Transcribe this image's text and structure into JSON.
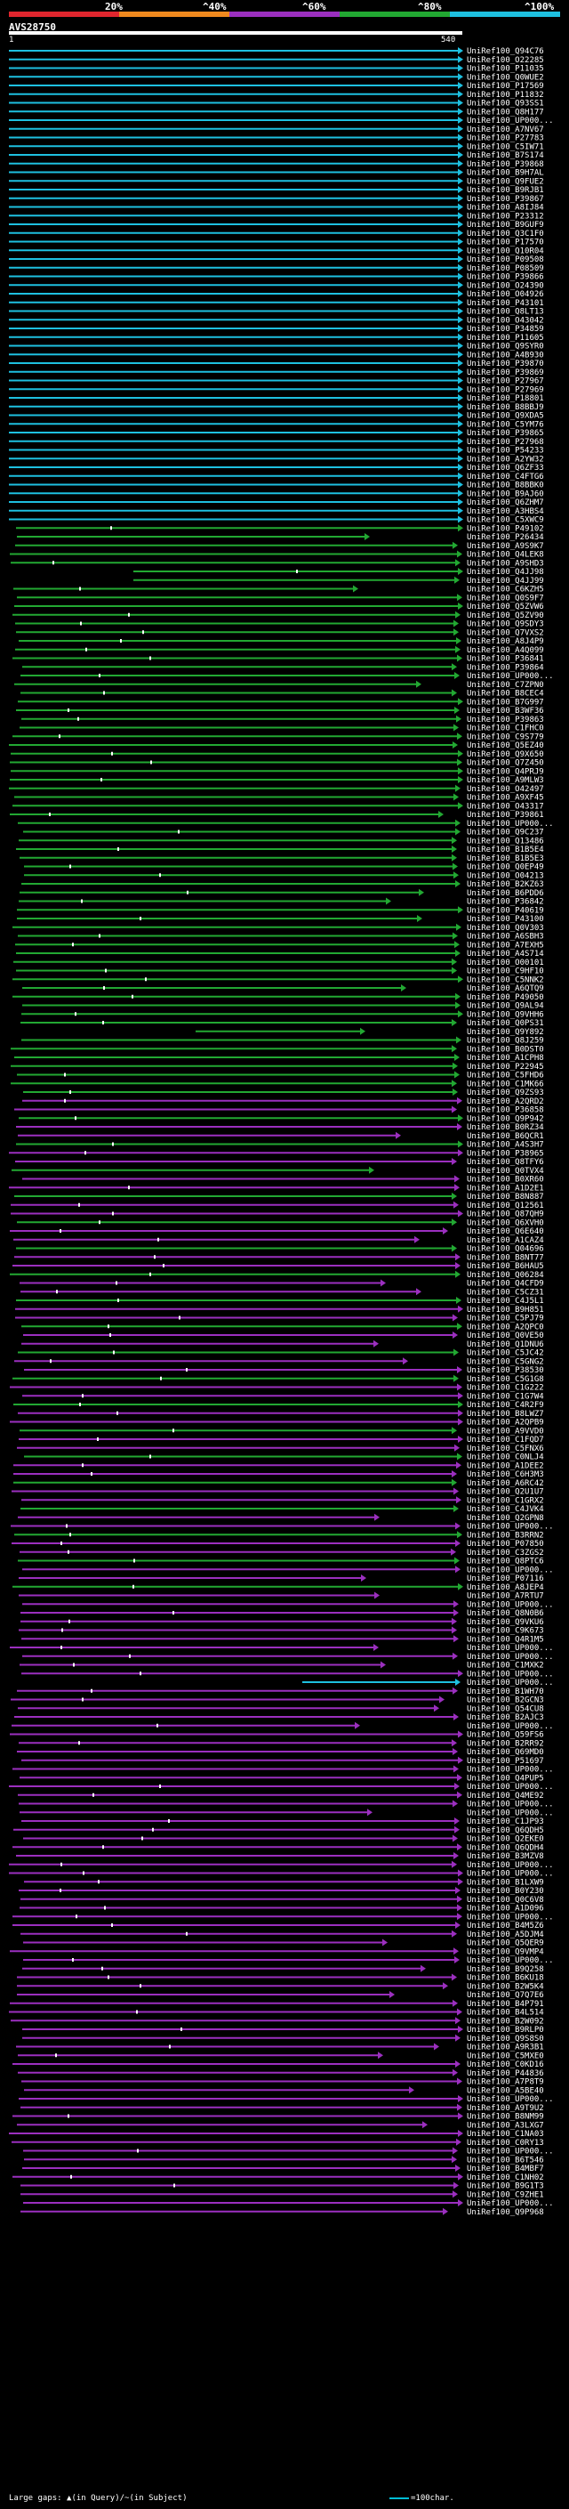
{
  "header": {
    "scale_labels": [
      "20%",
      "^40%",
      "^60%",
      "^80%",
      "^100%"
    ],
    "scale_colors": [
      "#e0262e",
      "#f0891e",
      "#9b2fbf",
      "#22a832",
      "#1ec0e0"
    ],
    "query_id": "AVS28750",
    "coord_start": "1",
    "coord_end": "540"
  },
  "legend": {
    "gaps_text": "Large gaps: ▲(in Query)/~(in Subject)",
    "scale_text": "=100char."
  },
  "chart_data": {
    "type": "alignment-overview",
    "query_length": 540,
    "title": "AVS28750",
    "hits": [
      "UniRef100_Q94C76",
      "UniRef100_O22285",
      "UniRef100_P11035",
      "UniRef100_Q0WUE2",
      "UniRef100_P17569",
      "UniRef100_P11832",
      "UniRef100_Q93SS1",
      "UniRef100_Q8H177",
      "UniRef100_UP000...",
      "UniRef100_A7NV67",
      "UniRef100_P27783",
      "UniRef100_C5IW71",
      "UniRef100_B7S174",
      "UniRef100_P39868",
      "UniRef100_B9H7AL",
      "UniRef100_Q9FUE2",
      "UniRef100_B9RJB1",
      "UniRef100_P39867",
      "UniRef100_A8IJ84",
      "UniRef100_P23312",
      "UniRef100_B9GUF9",
      "UniRef100_Q3C1F0",
      "UniRef100_P17570",
      "UniRef100_Q10R04",
      "UniRef100_P09508",
      "UniRef100_P08509",
      "UniRef100_P39866",
      "UniRef100_O24390",
      "UniRef100_O04926",
      "UniRef100_P43101",
      "UniRef100_Q8LT13",
      "UniRef100_O43042",
      "UniRef100_P34859",
      "UniRef100_P11605",
      "UniRef100_Q9SYR0",
      "UniRef100_A4B930",
      "UniRef100_P39870",
      "UniRef100_P39869",
      "UniRef100_P27967",
      "UniRef100_P27969",
      "UniRef100_P18801",
      "UniRef100_B8BBJ9",
      "UniRef100_Q9XDA5",
      "UniRef100_C5YM76",
      "UniRef100_P39865",
      "UniRef100_P27968",
      "UniRef100_P54233",
      "UniRef100_A2YW32",
      "UniRef100_Q6ZF33",
      "UniRef100_C4FTG6",
      "UniRef100_B8BBK0",
      "UniRef100_B9AJ60",
      "UniRef100_Q6ZHM7",
      "UniRef100_A3HBS4",
      "UniRef100_C5XWC9",
      "UniRef100_P49102",
      "UniRef100_P26434",
      "UniRef100_A9S9K7",
      "UniRef100_Q4LEK8",
      "UniRef100_A9SHD3",
      "UniRef100_Q4JJ98",
      "UniRef100_Q4JJ99",
      "UniRef100_C6KZH5",
      "UniRef100_Q0S9F7",
      "UniRef100_Q5ZVW6",
      "UniRef100_Q5ZV90",
      "UniRef100_Q9SDY3",
      "UniRef100_Q7VXS2",
      "UniRef100_A8J4P9",
      "UniRef100_A4Q099",
      "UniRef100_P36841",
      "UniRef100_P39864",
      "UniRef100_UP000...",
      "UniRef100_C7ZPN0",
      "UniRef100_B8CEC4",
      "UniRef100_B7G997",
      "UniRef100_B3WF36",
      "UniRef100_P39863",
      "UniRef100_C1FHC0",
      "UniRef100_C9S779",
      "UniRef100_Q5EZ40",
      "UniRef100_Q9X650",
      "UniRef100_Q7Z450",
      "UniRef100_Q4PRJ9",
      "UniRef100_A9MLW3",
      "UniRef100_O42497",
      "UniRef100_A9XF45",
      "UniRef100_O43317",
      "UniRef100_P39861",
      "UniRef100_UP000...",
      "UniRef100_Q9C237",
      "UniRef100_Q13486",
      "UniRef100_B1B5E4",
      "UniRef100_B1B5E3",
      "UniRef100_Q0EP49",
      "UniRef100_O04213",
      "UniRef100_B2KZ63",
      "UniRef100_B6PDD6",
      "UniRef100_P36842",
      "UniRef100_P40619",
      "UniRef100_P43100",
      "UniRef100_Q0V303",
      "UniRef100_A6SBH3",
      "UniRef100_A7EXH5",
      "UniRef100_A4S714",
      "UniRef100_O00101",
      "UniRef100_C9HF10",
      "UniRef100_C5NNK2",
      "UniRef100_A6QTQ9",
      "UniRef100_P49050",
      "UniRef100_Q9AL94",
      "UniRef100_Q9VHH6",
      "UniRef100_Q0PS31",
      "UniRef100_Q9Y892",
      "UniRef100_Q8J259",
      "UniRef100_B0DST0",
      "UniRef100_A1CPH8",
      "UniRef100_P22945",
      "UniRef100_C5FHD6",
      "UniRef100_C1MK66",
      "UniRef100_Q9ZS93",
      "UniRef100_A2QRD2",
      "UniRef100_P36858",
      "UniRef100_Q9P942",
      "UniRef100_B0RZ34",
      "UniRef100_B6QCR1",
      "UniRef100_A4S3H7",
      "UniRef100_P38965",
      "UniRef100_Q8TFY6",
      "UniRef100_Q0TVX4",
      "UniRef100_B0XR60",
      "UniRef100_A1D2E1",
      "UniRef100_B8N887",
      "UniRef100_Q12561",
      "UniRef100_Q87QH9",
      "UniRef100_Q6XVH0",
      "UniRef100_Q6E640",
      "UniRef100_A1CAZ4",
      "UniRef100_Q04696",
      "UniRef100_B8NT77",
      "UniRef100_B6HAU5",
      "UniRef100_Q06284",
      "UniRef100_Q4CFD9",
      "UniRef100_C5CZ31",
      "UniRef100_C4J5L1",
      "UniRef100_B9H851",
      "UniRef100_C5PJ79",
      "UniRef100_A2QPC0",
      "UniRef100_Q0VE50",
      "UniRef100_Q1DNU6",
      "UniRef100_C5JC42",
      "UniRef100_C5GNG2",
      "UniRef100_P38530",
      "UniRef100_C5G1G8",
      "UniRef100_C1G222",
      "UniRef100_C1G7W4",
      "UniRef100_C4R2F9",
      "UniRef100_B8LWZ7",
      "UniRef100_A2QPB9",
      "UniRef100_A9VVD0",
      "UniRef100_C1FQD7",
      "UniRef100_C5FNX6",
      "UniRef100_C0NLJ4",
      "UniRef100_A1DEE2",
      "UniRef100_C6H3M3",
      "UniRef100_A6RC42",
      "UniRef100_Q2U1U7",
      "UniRef100_C1GRX2",
      "UniRef100_C4JVK4",
      "UniRef100_Q2GPN8",
      "UniRef100_UP000...",
      "UniRef100_B3RRN2",
      "UniRef100_P07850",
      "UniRef100_C3ZGS2",
      "UniRef100_Q8PTC6",
      "UniRef100_UP000...",
      "UniRef100_P07116",
      "UniRef100_A8JEP4",
      "UniRef100_A7RTU7",
      "UniRef100_UP000...",
      "UniRef100_Q8N0B6",
      "UniRef100_Q9VKU6",
      "UniRef100_C9K673",
      "UniRef100_Q4R1M5",
      "UniRef100_UP000...",
      "UniRef100_UP000...",
      "UniRef100_C1MXK2",
      "UniRef100_UP000...",
      "UniRef100_UP000...",
      "UniRef100_B1WH70",
      "UniRef100_B2GCN3",
      "UniRef100_Q54CU8",
      "UniRef100_B2AJC3",
      "UniRef100_UP000...",
      "UniRef100_Q59FS6",
      "UniRef100_B2RR92",
      "UniRef100_Q69MD0",
      "UniRef100_P51697",
      "UniRef100_UP000...",
      "UniRef100_Q4PUP5",
      "UniRef100_UP000...",
      "UniRef100_Q4ME92",
      "UniRef100_UP000...",
      "UniRef100_UP000...",
      "UniRef100_C1JP93",
      "UniRef100_Q6QDH5",
      "UniRef100_Q2EKE0",
      "UniRef100_Q6QDH4",
      "UniRef100_B3MZV8",
      "UniRef100_UP000...",
      "UniRef100_UP000...",
      "UniRef100_B1LXW9",
      "UniRef100_B0Y230",
      "UniRef100_Q0C6V8",
      "UniRef100_A1D096",
      "UniRef100_UP000...",
      "UniRef100_B4M5Z6",
      "UniRef100_A5DJM4",
      "UniRef100_Q5QER9",
      "UniRef100_Q9VMP4",
      "UniRef100_UP000...",
      "UniRef100_B9Q258",
      "UniRef100_B6KU18",
      "UniRef100_B2W5K4",
      "UniRef100_Q7Q7E6",
      "UniRef100_B4P791",
      "UniRef100_B4L514",
      "UniRef100_B2W092",
      "UniRef100_B9RLP0",
      "UniRef100_Q9S8S0",
      "UniRef100_A9R3B1",
      "UniRef100_C5MXE0",
      "UniRef100_C0KD16",
      "UniRef100_P44836",
      "UniRef100_A7P8T9",
      "UniRef100_A5BE40",
      "UniRef100_UP000...",
      "UniRef100_A9T9U2",
      "UniRef100_B8NM99",
      "UniRef100_A3LXG7",
      "UniRef100_C1NA03",
      "UniRef100_C0RY13",
      "UniRef100_UP000...",
      "UniRef100_B6T546",
      "UniRef100_B4MBF7",
      "UniRef100_C1NH02",
      "UniRef100_B9G1T3",
      "UniRef100_C9ZHE1",
      "UniRef100_UP000...",
      "UniRef100_Q9P968"
    ]
  }
}
